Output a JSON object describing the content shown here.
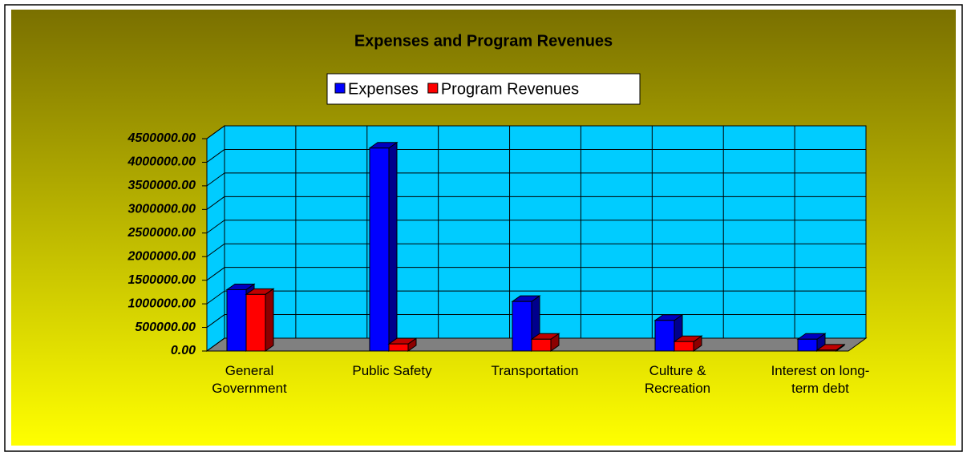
{
  "chart_data": {
    "type": "bar3d",
    "title": "Expenses and Program Revenues",
    "categories": [
      "General Government",
      "Public Safety",
      "Transportation",
      "Culture & Recreation",
      "Interest on long-term debt"
    ],
    "series": [
      {
        "name": "Expenses",
        "color": "#0000ff",
        "values": [
          1300000,
          4300000,
          1050000,
          650000,
          250000
        ]
      },
      {
        "name": "Program Revenues",
        "color": "#ff0000",
        "values": [
          1200000,
          150000,
          250000,
          200000,
          20000
        ]
      }
    ],
    "ylim": [
      0,
      4500000
    ],
    "yticks": [
      {
        "value": 0,
        "label": "0.00"
      },
      {
        "value": 500000,
        "label": "500000.00"
      },
      {
        "value": 1000000,
        "label": "1000000.00"
      },
      {
        "value": 1500000,
        "label": "1500000.00"
      },
      {
        "value": 2000000,
        "label": "2000000.00"
      },
      {
        "value": 2500000,
        "label": "2500000.00"
      },
      {
        "value": 3000000,
        "label": "3000000.00"
      },
      {
        "value": 3500000,
        "label": "3500000.00"
      },
      {
        "value": 4000000,
        "label": "4000000.00"
      },
      {
        "value": 4500000,
        "label": "4500000.00"
      }
    ],
    "grid": true
  }
}
